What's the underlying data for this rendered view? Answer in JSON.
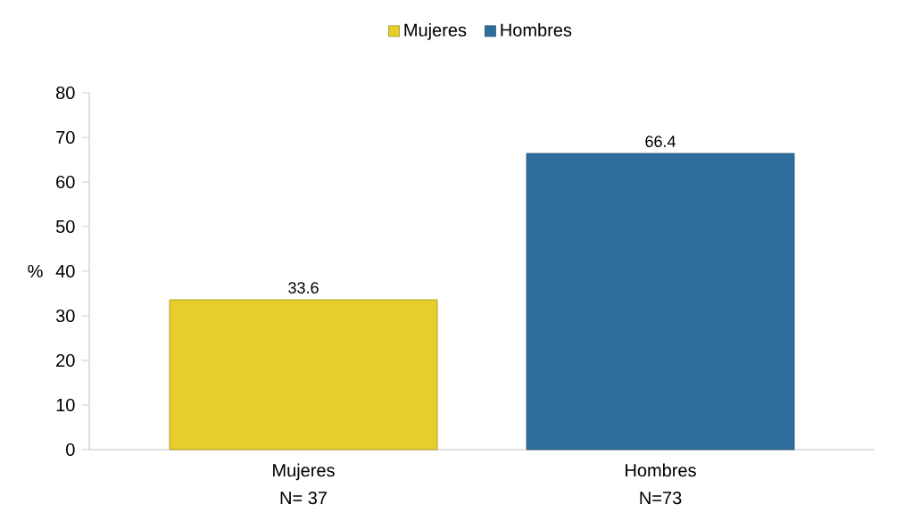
{
  "chart_data": {
    "type": "bar",
    "ylabel": "%",
    "categories": [
      "Mujeres",
      "Hombres"
    ],
    "series": [
      {
        "name": "Mujeres",
        "color": "#e6cf2a",
        "values": [
          33.6,
          null
        ]
      },
      {
        "name": "Hombres",
        "color": "#2e6f9e",
        "values": [
          null,
          66.4
        ]
      }
    ],
    "ylim": [
      0,
      80
    ],
    "yticks": [
      0,
      10,
      20,
      30,
      40,
      50,
      60,
      70,
      80
    ],
    "data_labels": true,
    "legend": "top",
    "grid": false,
    "annotations": [
      "N= 37",
      "N=73"
    ]
  }
}
